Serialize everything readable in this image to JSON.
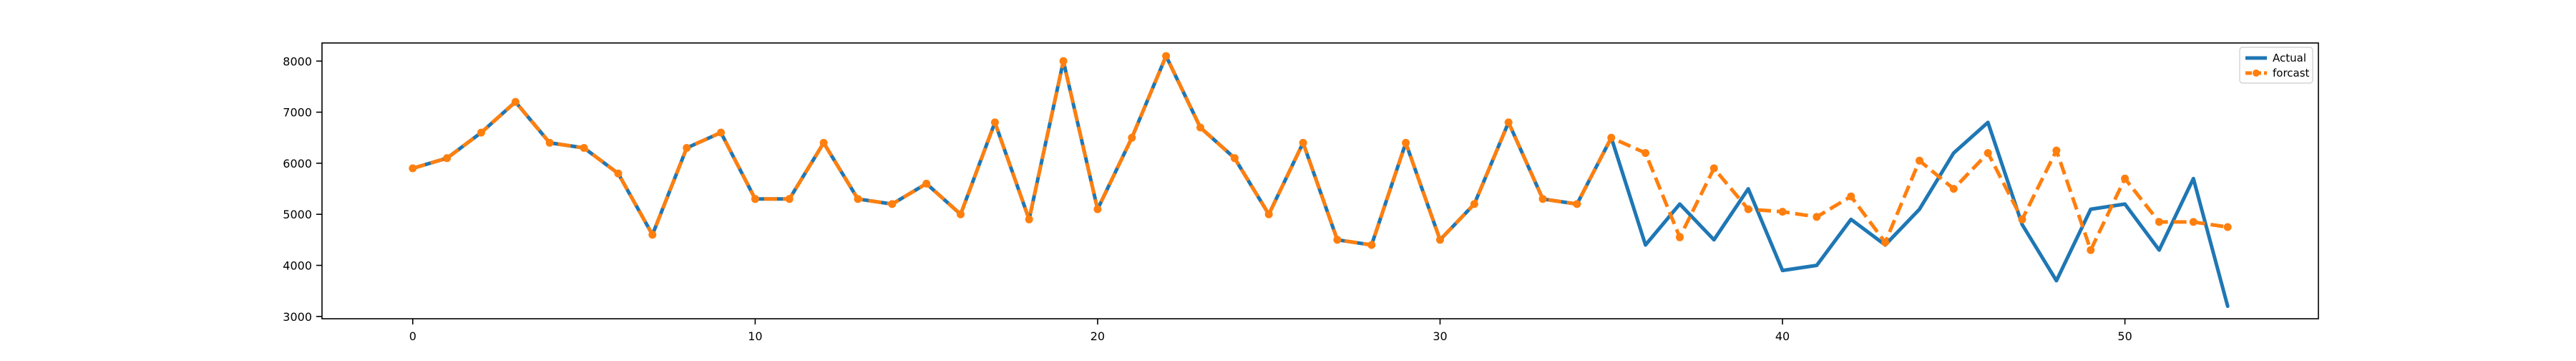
{
  "chart_data": {
    "type": "line",
    "title": "",
    "xlabel": "",
    "ylabel": "",
    "xlim": [
      -2.65,
      55.65
    ],
    "ylim": [
      2955,
      8355
    ],
    "xticks": [
      0,
      10,
      20,
      30,
      40,
      50
    ],
    "yticks": [
      3000,
      4000,
      5000,
      6000,
      7000,
      8000
    ],
    "grid": false,
    "legend": {
      "position": "top-right",
      "entries": [
        "Actual",
        "forcast"
      ]
    },
    "colors": {
      "actual": "#1f77b4",
      "forcast": "#ff7f0e",
      "axes": "#000000"
    },
    "series": [
      {
        "name": "Actual",
        "style": "solid",
        "x": [
          0,
          1,
          2,
          3,
          4,
          5,
          6,
          7,
          8,
          9,
          10,
          11,
          12,
          13,
          14,
          15,
          16,
          17,
          18,
          19,
          20,
          21,
          22,
          23,
          24,
          25,
          26,
          27,
          28,
          29,
          30,
          31,
          32,
          33,
          34,
          35,
          36,
          37,
          38,
          39,
          40,
          41,
          42,
          43,
          44,
          45,
          46,
          47,
          48,
          49,
          50,
          51,
          52,
          53
        ],
        "values": [
          5900,
          6100,
          6600,
          7200,
          6400,
          6300,
          5800,
          4600,
          6300,
          6600,
          5300,
          5300,
          6400,
          5300,
          5200,
          5600,
          5000,
          6800,
          4900,
          8000,
          5100,
          6500,
          8100,
          6700,
          6100,
          5000,
          6400,
          4500,
          4400,
          6400,
          4500,
          5200,
          6800,
          5300,
          5200,
          6500,
          4400,
          5200,
          4500,
          5500,
          3900,
          4000,
          4900,
          4400,
          5100,
          6200,
          6800,
          4800,
          3700,
          5100,
          5200,
          4300,
          5700,
          3200
        ]
      },
      {
        "name": "forcast",
        "style": "dashed",
        "marker": "circle",
        "x": [
          0,
          1,
          2,
          3,
          4,
          5,
          6,
          7,
          8,
          9,
          10,
          11,
          12,
          13,
          14,
          15,
          16,
          17,
          18,
          19,
          20,
          21,
          22,
          23,
          24,
          25,
          26,
          27,
          28,
          29,
          30,
          31,
          32,
          33,
          34,
          35,
          36,
          37,
          38,
          39,
          40,
          41,
          42,
          43,
          44,
          45,
          46,
          47,
          48,
          49,
          50,
          51,
          52,
          53
        ],
        "values": [
          5900,
          6100,
          6600,
          7200,
          6400,
          6300,
          5800,
          4600,
          6300,
          6600,
          5300,
          5300,
          6400,
          5300,
          5200,
          5600,
          5000,
          6800,
          4900,
          8000,
          5100,
          6500,
          8100,
          6700,
          6100,
          5000,
          6400,
          4500,
          4400,
          6400,
          4500,
          5200,
          6800,
          5300,
          5200,
          6500,
          6200,
          4550,
          5900,
          5100,
          5050,
          4950,
          5350,
          4450,
          6050,
          5500,
          6200,
          4900,
          6250,
          4300,
          5700,
          4850,
          4850,
          4750
        ]
      }
    ]
  }
}
